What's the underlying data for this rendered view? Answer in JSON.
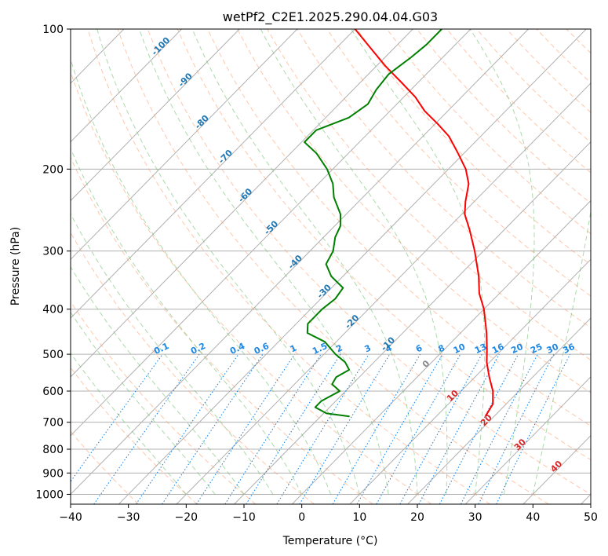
{
  "chart_data": {
    "type": "line",
    "title": "wetPf2_C2E1.2025.290.04.04.G03",
    "xlabel": "Temperature (°C)",
    "ylabel": "Pressure (hPa)",
    "xlim": [
      -40,
      50
    ],
    "ylim": [
      1050,
      100
    ],
    "x_ticks": [
      "−40",
      "−30",
      "−20",
      "−10",
      "0",
      "10",
      "20",
      "30",
      "40",
      "50"
    ],
    "y_ticks": [
      "100",
      "200",
      "300",
      "400",
      "500",
      "600",
      "700",
      "800",
      "900",
      "1000"
    ],
    "grid": true,
    "series": [
      {
        "name": "Temperature",
        "color": "#ff0000",
        "points": [
          {
            "p": 680,
            "t": 18.5
          },
          {
            "p": 640,
            "t": 17.7
          },
          {
            "p": 600,
            "t": 15.5
          },
          {
            "p": 560,
            "t": 12.5
          },
          {
            "p": 520,
            "t": 9.5
          },
          {
            "p": 490,
            "t": 7.5
          },
          {
            "p": 450,
            "t": 4.5
          },
          {
            "p": 400,
            "t": 0.0
          },
          {
            "p": 370,
            "t": -3.5
          },
          {
            "p": 340,
            "t": -6.5
          },
          {
            "p": 300,
            "t": -11.5
          },
          {
            "p": 270,
            "t": -16.0
          },
          {
            "p": 250,
            "t": -19.5
          },
          {
            "p": 235,
            "t": -21.5
          },
          {
            "p": 215,
            "t": -24.0
          },
          {
            "p": 200,
            "t": -27.0
          },
          {
            "p": 185,
            "t": -31.0
          },
          {
            "p": 170,
            "t": -35.5
          },
          {
            "p": 160,
            "t": -39.5
          },
          {
            "p": 150,
            "t": -44.0
          },
          {
            "p": 140,
            "t": -48.0
          },
          {
            "p": 130,
            "t": -53.0
          },
          {
            "p": 120,
            "t": -58.5
          },
          {
            "p": 110,
            "t": -64.0
          },
          {
            "p": 100,
            "t": -70.0
          }
        ]
      },
      {
        "name": "Dewpoint",
        "color": "#008000",
        "points": [
          {
            "p": 680,
            "t": -5.0
          },
          {
            "p": 670,
            "t": -9.5
          },
          {
            "p": 650,
            "t": -12.5
          },
          {
            "p": 630,
            "t": -12.5
          },
          {
            "p": 600,
            "t": -11.0
          },
          {
            "p": 580,
            "t": -13.5
          },
          {
            "p": 560,
            "t": -14.0
          },
          {
            "p": 540,
            "t": -13.0
          },
          {
            "p": 520,
            "t": -15.0
          },
          {
            "p": 500,
            "t": -18.0
          },
          {
            "p": 470,
            "t": -22.0
          },
          {
            "p": 450,
            "t": -26.5
          },
          {
            "p": 430,
            "t": -28.0
          },
          {
            "p": 400,
            "t": -28.0
          },
          {
            "p": 380,
            "t": -27.5
          },
          {
            "p": 360,
            "t": -28.0
          },
          {
            "p": 340,
            "t": -32.0
          },
          {
            "p": 320,
            "t": -35.0
          },
          {
            "p": 300,
            "t": -36.0
          },
          {
            "p": 280,
            "t": -38.0
          },
          {
            "p": 265,
            "t": -39.0
          },
          {
            "p": 250,
            "t": -41.0
          },
          {
            "p": 230,
            "t": -45.0
          },
          {
            "p": 215,
            "t": -47.5
          },
          {
            "p": 200,
            "t": -51.0
          },
          {
            "p": 185,
            "t": -55.5
          },
          {
            "p": 175,
            "t": -59.5
          },
          {
            "p": 165,
            "t": -59.5
          },
          {
            "p": 155,
            "t": -56.0
          },
          {
            "p": 145,
            "t": -55.0
          },
          {
            "p": 135,
            "t": -56.0
          },
          {
            "p": 125,
            "t": -56.5
          },
          {
            "p": 115,
            "t": -55.5
          },
          {
            "p": 108,
            "t": -55.0
          },
          {
            "p": 100,
            "t": -55.0
          }
        ]
      }
    ],
    "isotherm_labels": [
      "-100",
      "-90",
      "-80",
      "-70",
      "-60",
      "-50",
      "-40",
      "-30",
      "-20",
      "-10"
    ],
    "mixing_ratio_labels": [
      "0.1",
      "0.2",
      "0.4",
      "0.6",
      "1",
      "1.5",
      "2",
      "3",
      "4",
      "6",
      "8",
      "10",
      "13",
      "16",
      "20",
      "25",
      "30",
      "36"
    ],
    "isotherm_labels_red": [
      "10",
      "20",
      "30",
      "40"
    ],
    "zero_isotherm_label": "0",
    "colors": {
      "isotherm": "#b0b0b0",
      "dry_adiabat": "#ff9966",
      "moist_adiabat": "#66bb66",
      "mixing_ratio": "#1e88e5",
      "isotherm_label": "#1f77b4",
      "warm_label": "#d62728",
      "frame": "#000000"
    }
  }
}
